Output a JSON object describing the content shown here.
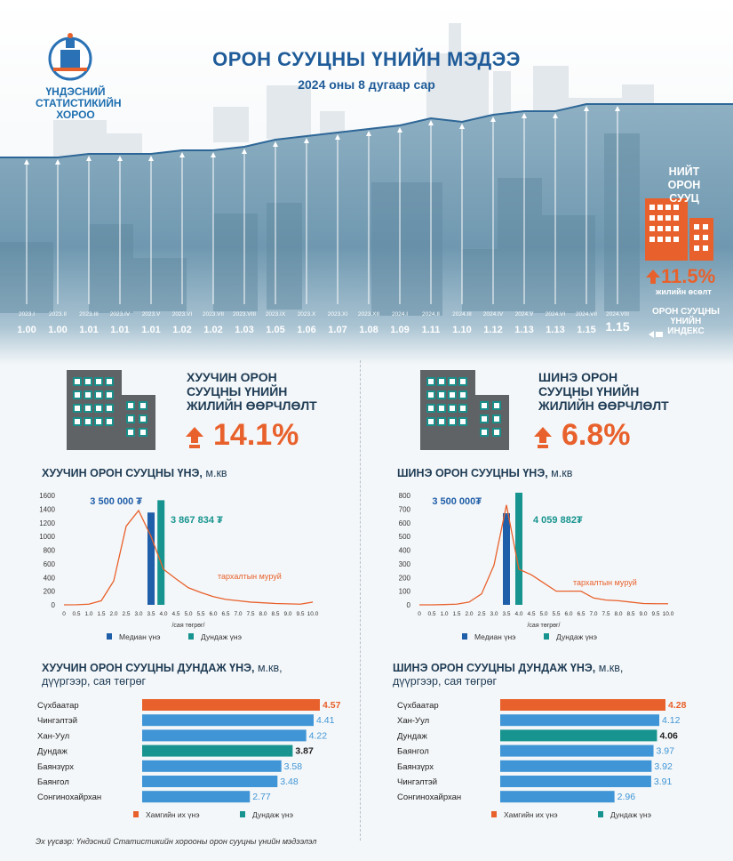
{
  "header": {
    "title": "ОРОН СУУЦНЫ ҮНИЙН МЭДЭЭ",
    "subtitle": "2024 оны 8 дугаар сар",
    "org_name": "ҮНДЭСНИЙ СТАТИСТИКИЙН ХОРОО"
  },
  "index_section": {
    "periods": [
      "2023.I",
      "2023.II",
      "2023.III",
      "2023.IV",
      "2023.V",
      "2023.VI",
      "2023.VII",
      "2023.VIII",
      "2023.IX",
      "2023.X",
      "2023.XI",
      "2023.XII",
      "2024.I",
      "2024.II",
      "2024.III",
      "2024.IV",
      "2024.V",
      "2024.VI",
      "2024.VII",
      "2024.VIII"
    ],
    "values": [
      "1.00",
      "1.00",
      "1.01",
      "1.01",
      "1.01",
      "1.02",
      "1.02",
      "1.03",
      "1.05",
      "1.06",
      "1.07",
      "1.08",
      "1.09",
      "1.11",
      "1.10",
      "1.12",
      "1.13",
      "1.13",
      "1.15",
      "1.15"
    ],
    "total_label": "НИЙТ ОРОН СУУЦ",
    "growth": "11.5%",
    "growth_label": "жилийн өсөлт",
    "index_label": "ОРОН СУУЦНЫ ҮНИЙН ИНДЕКС"
  },
  "old_change": {
    "title": "ХУУЧИН ОРОН СУУЦНЫ ҮНИЙН ЖИЛИЙН ӨӨРЧЛӨЛТ",
    "value": "14.1%"
  },
  "new_change": {
    "title": "ШИНЭ ОРОН СУУЦНЫ ҮНИЙН ЖИЛИЙН ӨӨРЧЛӨЛТ",
    "value": "6.8%"
  },
  "old_dist": {
    "title": "ХУУЧИН ОРОН СУУЦНЫ ҮНЭ,",
    "unit": "м.кв",
    "median_label": "3 500 000 ₮",
    "mean_label": "3 867 834 ₮",
    "curve_label": "тархалтын муруй",
    "xlabel": "/сая төгрөг/",
    "legend_median": "Медиан үнэ",
    "legend_mean": "Дундаж үнэ"
  },
  "new_dist": {
    "title": "ШИНЭ ОРОН СУУЦНЫ ҮНЭ,",
    "unit": "м.кв",
    "median_label": "3 500 000₮",
    "mean_label": "4 059 882₮",
    "curve_label": "тархалтын муруй",
    "xlabel": "/сая төгрөг/",
    "legend_median": "Медиан үнэ",
    "legend_mean": "Дундаж үнэ"
  },
  "old_districts": {
    "title1": "ХУУЧИН ОРОН СУУЦНЫ ДУНДАЖ ҮНЭ,",
    "title1_unit": "м.кв,",
    "title2": "дүүргээр, сая төгрөг",
    "legend_max": "Хамгийн их үнэ",
    "legend_avg": "Дундаж үнэ"
  },
  "new_districts": {
    "title1": "ШИНЭ ОРОН СУУЦНЫ ДУНДАЖ ҮНЭ,",
    "title1_unit": "м.кв,",
    "title2": "дүүргээр, сая төгрөг",
    "legend_max": "Хамгийн их үнэ",
    "legend_avg": "Дундаж үнэ"
  },
  "source": "Эх үүсвэр: Үндэсний Статистикийн хорооны орон сууцны үнийн мэдээлэл",
  "colors": {
    "orange": "#e8612c",
    "blue": "#3f95d6",
    "teal": "#17948f",
    "navy": "#1f5ea8",
    "title_blue": "#1f5c99"
  },
  "chart_data": [
    {
      "type": "line",
      "title": "ОРОН СУУЦНЫ ҮНИЙН ИНДЕКС",
      "categories": [
        "2023.I",
        "2023.II",
        "2023.III",
        "2023.IV",
        "2023.V",
        "2023.VI",
        "2023.VII",
        "2023.VIII",
        "2023.IX",
        "2023.X",
        "2023.XI",
        "2023.XII",
        "2024.I",
        "2024.II",
        "2024.III",
        "2024.IV",
        "2024.V",
        "2024.VI",
        "2024.VII",
        "2024.VIII"
      ],
      "values": [
        1.0,
        1.0,
        1.01,
        1.01,
        1.01,
        1.02,
        1.02,
        1.03,
        1.05,
        1.06,
        1.07,
        1.08,
        1.09,
        1.11,
        1.1,
        1.12,
        1.13,
        1.13,
        1.15,
        1.15
      ]
    },
    {
      "type": "line",
      "title": "ХУУЧИН ОРОН СУУЦНЫ ҮНЭ, м.кв",
      "xlabel": "/сая төгрөг/",
      "x": [
        0,
        0.5,
        1.0,
        1.5,
        2.0,
        2.5,
        3.0,
        3.5,
        4.0,
        4.5,
        5.0,
        5.5,
        6.0,
        6.5,
        7.0,
        7.5,
        8.0,
        8.5,
        9.0,
        9.5,
        10.0
      ],
      "x_tick_labels": [
        "0",
        "0.5",
        "1.0",
        "1.5",
        "2.0",
        "2.5",
        "3.0",
        "3.5",
        "4.0",
        "4.5",
        "5.0",
        "5.5",
        "6.0",
        "6.5",
        "7.0",
        "7.5",
        "8.0",
        "8.5",
        "9.0",
        "9.5",
        "10.0"
      ],
      "series": [
        {
          "name": "тархалтын муруй",
          "values": [
            0,
            2,
            10,
            60,
            350,
            1150,
            1380,
            1000,
            520,
            380,
            250,
            180,
            120,
            80,
            60,
            40,
            30,
            20,
            15,
            10,
            40
          ]
        }
      ],
      "median": {
        "name": "Медиан үнэ",
        "x": 3.5,
        "value": 1350
      },
      "mean": {
        "name": "Дундаж үнэ",
        "x": 3.9,
        "value": 1530
      },
      "ylim": [
        0,
        1600
      ],
      "yticks": [
        0,
        200,
        400,
        600,
        800,
        1000,
        1200,
        1400,
        1600
      ]
    },
    {
      "type": "line",
      "title": "ШИНЭ ОРОН СУУЦНЫ ҮНЭ, м.кв",
      "xlabel": "/сая төгрөг/",
      "x": [
        0,
        0.5,
        1.0,
        1.5,
        2.0,
        2.5,
        3.0,
        3.5,
        4.0,
        4.5,
        5.0,
        5.5,
        6.0,
        6.5,
        7.0,
        7.5,
        8.0,
        8.5,
        9.0,
        9.5,
        10.0
      ],
      "x_tick_labels": [
        "0",
        "0.5",
        "1.0",
        "1.5",
        "2.0",
        "2.5",
        "3.0",
        "3.5",
        "4.0",
        "4.5",
        "5.0",
        "5.5",
        "6.0",
        "6.5",
        "7.0",
        "7.5",
        "8.0",
        "8.5",
        "9.0",
        "9.5",
        "10.0"
      ],
      "series": [
        {
          "name": "тархалтын муруй",
          "values": [
            0,
            0,
            2,
            5,
            20,
            80,
            290,
            730,
            260,
            220,
            160,
            100,
            100,
            100,
            50,
            35,
            30,
            20,
            10,
            8,
            8
          ]
        }
      ],
      "median": {
        "name": "Медиан үнэ",
        "x": 3.5,
        "value": 670
      },
      "mean": {
        "name": "Дундаж үнэ",
        "x": 4.0,
        "value": 820
      },
      "ylim": [
        0,
        800
      ],
      "yticks": [
        0,
        100,
        200,
        300,
        400,
        500,
        600,
        700,
        800
      ]
    },
    {
      "type": "bar",
      "title": "ХУУЧИН ОРОН СУУЦНЫ ДУНДАЖ ҮНЭ, м.кв, дүүргээр, сая төгрөг",
      "categories": [
        "Сүхбаатар",
        "Чингэлтэй",
        "Хан-Уул",
        "Дундаж",
        "Баянзүрх",
        "Баянгол",
        "Сонгинохайрхан"
      ],
      "values": [
        4.57,
        4.41,
        4.22,
        3.87,
        3.58,
        3.48,
        2.77
      ],
      "value_labels": [
        "4.57",
        "4.41",
        "4.22",
        "3.87",
        "3.58",
        "3.48",
        "2.77"
      ],
      "kinds": [
        "max",
        "normal",
        "normal",
        "avg",
        "normal",
        "normal",
        "normal"
      ],
      "xlim": [
        0,
        4.57
      ]
    },
    {
      "type": "bar",
      "title": "ШИНЭ ОРОН СУУЦНЫ ДУНДАЖ ҮНЭ, м.кв, дүүргээр, сая төгрөг",
      "categories": [
        "Сүхбаатар",
        "Хан-Уул",
        "Дундаж",
        "Баянгол",
        "Баянзүрх",
        "Чингэлтэй",
        "Сонгинохайрхан"
      ],
      "values": [
        4.28,
        4.12,
        4.06,
        3.97,
        3.92,
        3.91,
        2.96
      ],
      "value_labels": [
        "4.28",
        "4.12",
        "4.06",
        "3.97",
        "3.92",
        "3.91",
        "2.96"
      ],
      "kinds": [
        "max",
        "normal",
        "avg",
        "normal",
        "normal",
        "normal",
        "normal"
      ],
      "xlim": [
        0,
        4.28
      ]
    }
  ]
}
